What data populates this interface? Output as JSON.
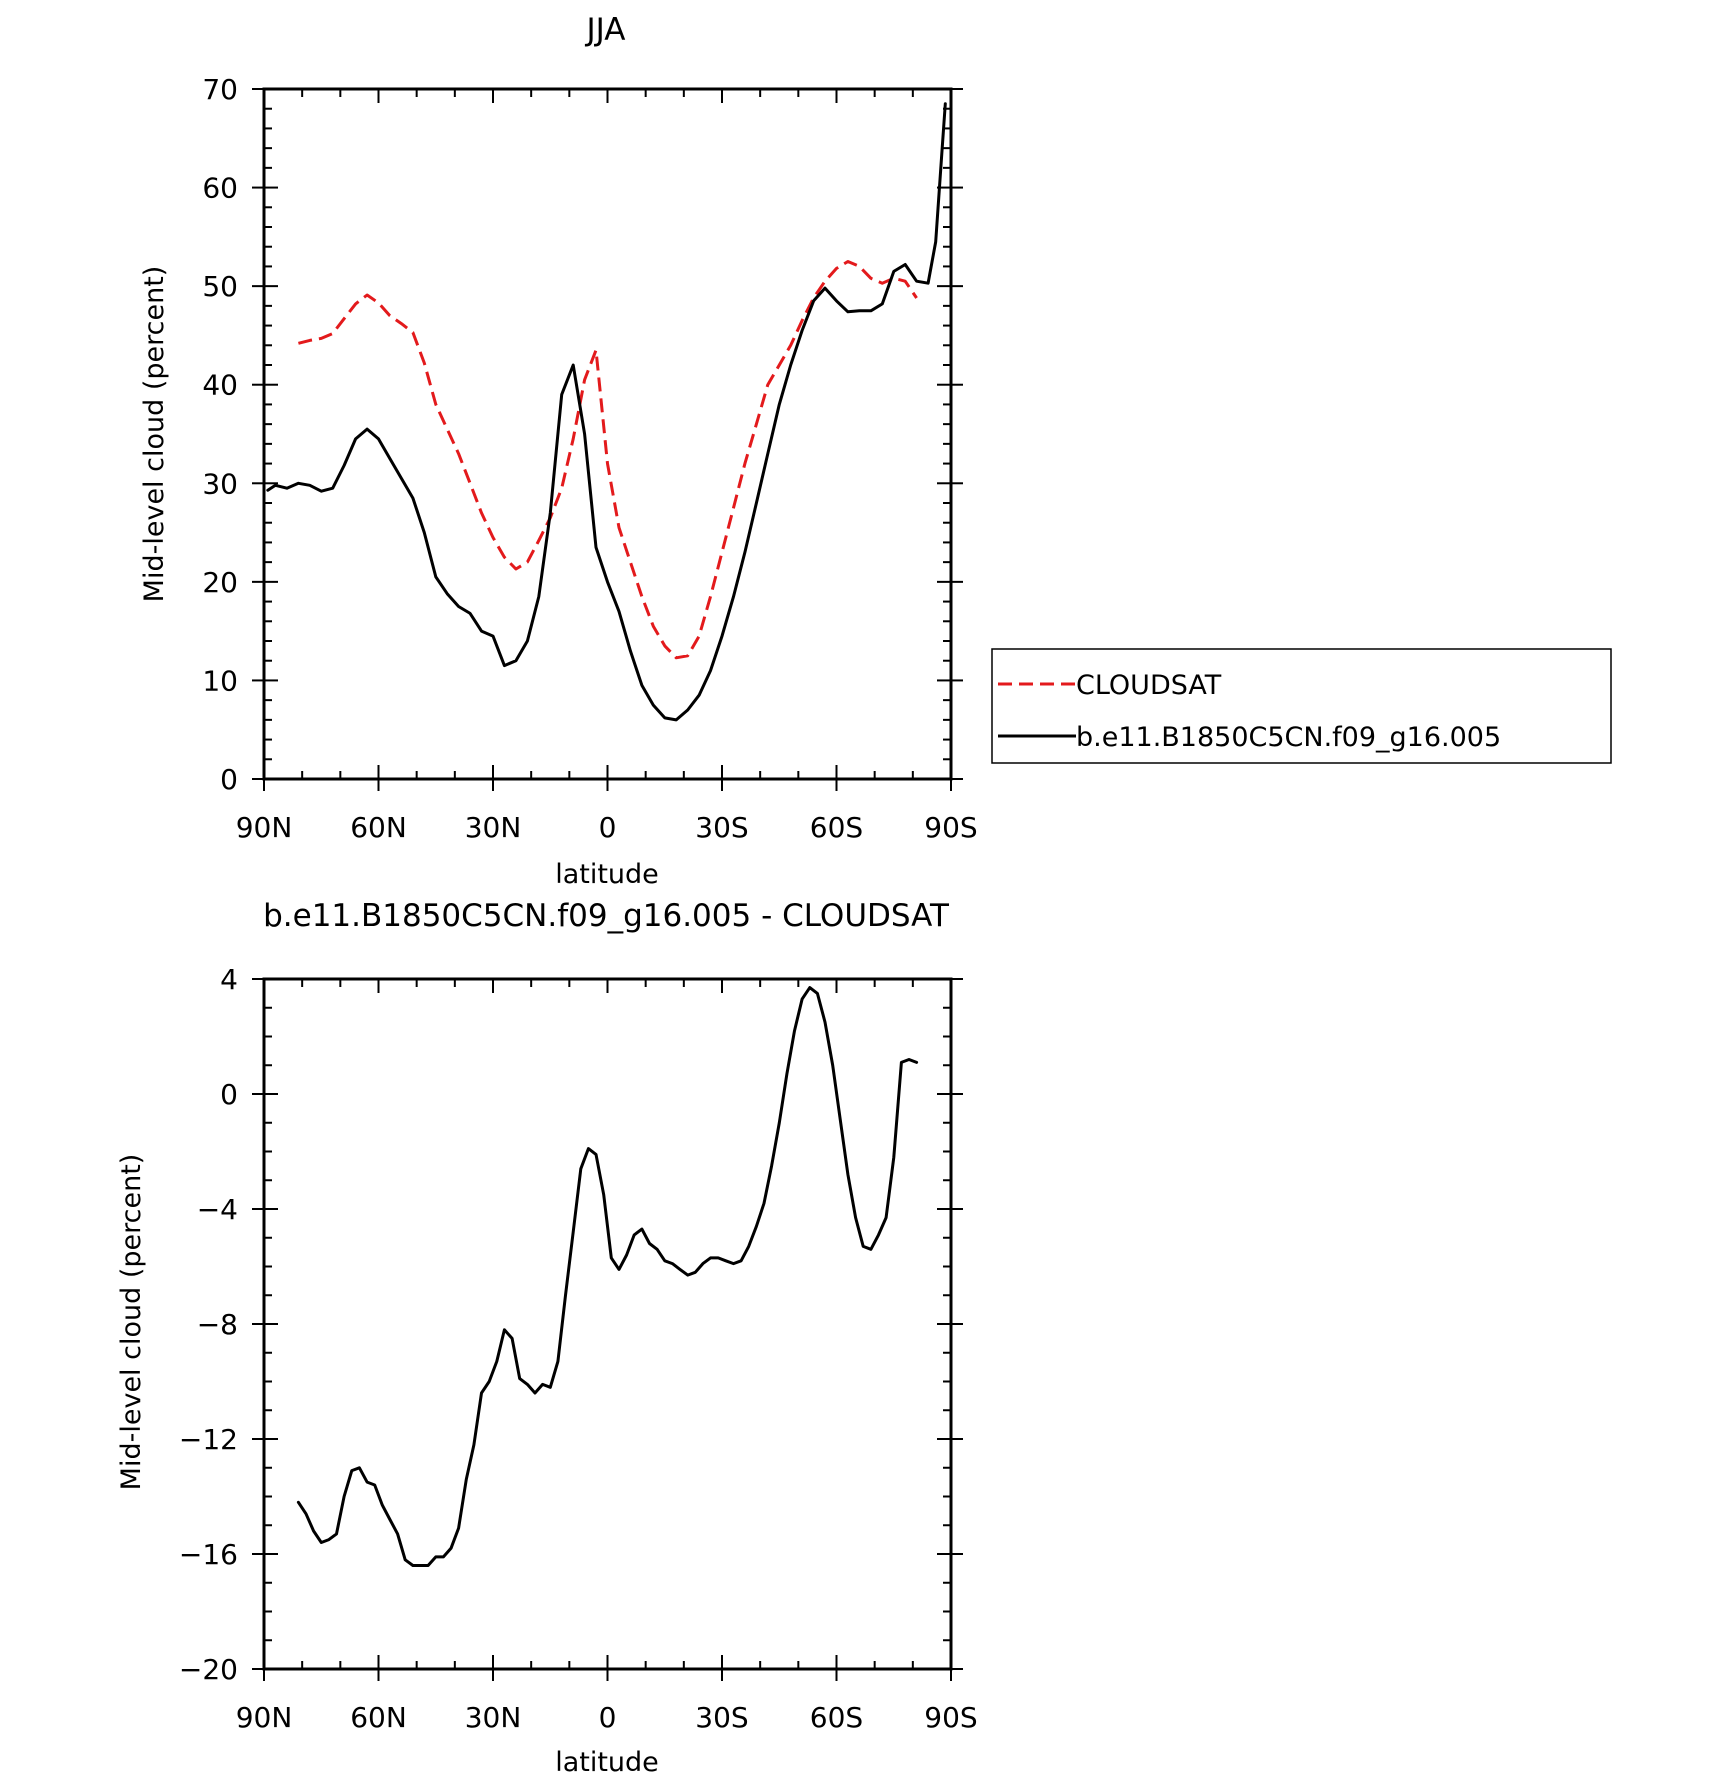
{
  "chart_data": [
    {
      "type": "line",
      "title": "JJA",
      "xlabel": "latitude",
      "ylabel": "Mid-level cloud (percent)",
      "xlim": [
        90,
        -90
      ],
      "ylim": [
        0,
        70
      ],
      "xticks": [
        90,
        60,
        30,
        0,
        -30,
        -60,
        -90
      ],
      "xtick_labels": [
        "90N",
        "60N",
        "30N",
        "0",
        "30S",
        "60S",
        "90S"
      ],
      "yticks": [
        0,
        10,
        20,
        30,
        40,
        50,
        60,
        70
      ],
      "ytick_labels": [
        "0",
        "10",
        "20",
        "30",
        "40",
        "50",
        "60",
        "70"
      ],
      "legend_position": "right",
      "series": [
        {
          "name": "CLOUDSAT",
          "color": "#e31a1c",
          "style": "dashed",
          "x": [
            81,
            78,
            75,
            72,
            69,
            66,
            63,
            60,
            57,
            54,
            51,
            48,
            45,
            42,
            39,
            36,
            33,
            30,
            27,
            24,
            21,
            18,
            15,
            12,
            9,
            6,
            3,
            0,
            -3,
            -6,
            -9,
            -12,
            -15,
            -18,
            -21,
            -24,
            -27,
            -30,
            -33,
            -36,
            -39,
            -42,
            -45,
            -48,
            -51,
            -54,
            -57,
            -60,
            -63,
            -66,
            -69,
            -72,
            -75,
            -78,
            -81
          ],
          "y": [
            44.2,
            44.5,
            44.7,
            45.2,
            46.7,
            48.2,
            49.1,
            48.3,
            47.0,
            46.2,
            45.3,
            42.2,
            38.0,
            35.5,
            33.0,
            30.0,
            27.0,
            24.5,
            22.5,
            21.3,
            22.0,
            24.2,
            26.5,
            29.5,
            34.5,
            40.5,
            43.5,
            32.0,
            25.5,
            22.0,
            18.5,
            15.5,
            13.5,
            12.3,
            12.5,
            14.5,
            18.5,
            23.0,
            27.5,
            32.0,
            36.0,
            40.0,
            42.0,
            44.0,
            46.5,
            48.8,
            50.5,
            51.8,
            52.5,
            52.0,
            50.8,
            50.3,
            50.8,
            50.5,
            48.8
          ]
        },
        {
          "name": "b.e11.B1850C5CN.f09_g16.005",
          "color": "#000000",
          "style": "solid",
          "x": [
            89,
            87,
            84,
            81,
            78,
            75,
            72,
            69,
            66,
            63,
            60,
            57,
            54,
            51,
            48,
            45,
            42,
            39,
            36,
            33,
            30,
            27,
            24,
            21,
            18,
            15,
            12,
            9,
            6,
            3,
            0,
            -3,
            -6,
            -9,
            -12,
            -15,
            -18,
            -21,
            -24,
            -27,
            -30,
            -33,
            -36,
            -39,
            -42,
            -45,
            -48,
            -51,
            -54,
            -57,
            -60,
            -63,
            -66,
            -69,
            -72,
            -75,
            -78,
            -81,
            -84,
            -86,
            -87.5,
            -88.5
          ],
          "y": [
            29.3,
            29.8,
            29.5,
            30.0,
            29.8,
            29.2,
            29.5,
            31.8,
            34.5,
            35.5,
            34.5,
            32.5,
            30.5,
            28.5,
            25.0,
            20.5,
            18.8,
            17.5,
            16.8,
            15.0,
            14.5,
            11.5,
            12.0,
            14.0,
            18.5,
            27.0,
            39.0,
            42.0,
            35.0,
            23.5,
            20.0,
            17.0,
            13.0,
            9.5,
            7.5,
            6.2,
            6.0,
            7.0,
            8.5,
            11.0,
            14.5,
            18.5,
            23.0,
            28.0,
            33.0,
            38.0,
            42.0,
            45.5,
            48.5,
            49.8,
            48.5,
            47.4,
            47.5,
            47.5,
            48.2,
            51.5,
            52.2,
            50.5,
            50.3,
            54.5,
            63.0,
            68.5
          ]
        }
      ]
    },
    {
      "type": "line",
      "title": "b.e11.B1850C5CN.f09_g16.005 - CLOUDSAT",
      "xlabel": "latitude",
      "ylabel": "Mid-level cloud (percent)",
      "xlim": [
        90,
        -90
      ],
      "ylim": [
        -20,
        4
      ],
      "xticks": [
        90,
        60,
        30,
        0,
        -30,
        -60,
        -90
      ],
      "xtick_labels": [
        "90N",
        "60N",
        "30N",
        "0",
        "30S",
        "60S",
        "90S"
      ],
      "yticks": [
        -20,
        -16,
        -12,
        -8,
        -4,
        0,
        4
      ],
      "ytick_labels": [
        "−20",
        "−16",
        "−12",
        "−8",
        "−4",
        "0",
        "4"
      ],
      "series": [
        {
          "color": "#000000",
          "style": "solid",
          "x": [
            81,
            79,
            77,
            75,
            73,
            71,
            69,
            67,
            65,
            63,
            61,
            59,
            57,
            55,
            53,
            51,
            49,
            47,
            45,
            43,
            41,
            39,
            37,
            35,
            33,
            31,
            29,
            27,
            25,
            23,
            21,
            19,
            17,
            15,
            13,
            11,
            9,
            7,
            5,
            3,
            1,
            -1,
            -3,
            -5,
            -7,
            -9,
            -11,
            -13,
            -15,
            -17,
            -19,
            -21,
            -23,
            -25,
            -27,
            -29,
            -31,
            -33,
            -35,
            -37,
            -39,
            -41,
            -43,
            -45,
            -47,
            -49,
            -51,
            -53,
            -55,
            -57,
            -59,
            -61,
            -63,
            -65,
            -67,
            -69,
            -71,
            -73,
            -75,
            -77,
            -79,
            -81
          ],
          "y": [
            -14.2,
            -14.6,
            -15.2,
            -15.6,
            -15.5,
            -15.3,
            -14.0,
            -13.1,
            -13.0,
            -13.5,
            -13.6,
            -14.3,
            -14.8,
            -15.3,
            -16.2,
            -16.4,
            -16.4,
            -16.4,
            -16.1,
            -16.1,
            -15.8,
            -15.1,
            -13.4,
            -12.2,
            -10.4,
            -10.0,
            -9.3,
            -8.2,
            -8.5,
            -9.9,
            -10.1,
            -10.4,
            -10.1,
            -10.2,
            -9.3,
            -7.0,
            -4.8,
            -2.6,
            -1.9,
            -2.1,
            -3.5,
            -5.7,
            -6.1,
            -5.6,
            -4.9,
            -4.7,
            -5.2,
            -5.4,
            -5.8,
            -5.9,
            -6.1,
            -6.3,
            -6.2,
            -5.9,
            -5.7,
            -5.7,
            -5.8,
            -5.9,
            -5.8,
            -5.3,
            -4.6,
            -3.8,
            -2.5,
            -1.0,
            0.7,
            2.2,
            3.3,
            3.7,
            3.5,
            2.5,
            1.0,
            -0.9,
            -2.8,
            -4.3,
            -5.3,
            -5.4,
            -4.9,
            -4.3,
            -2.2,
            1.1,
            1.2,
            1.1
          ]
        }
      ]
    }
  ]
}
